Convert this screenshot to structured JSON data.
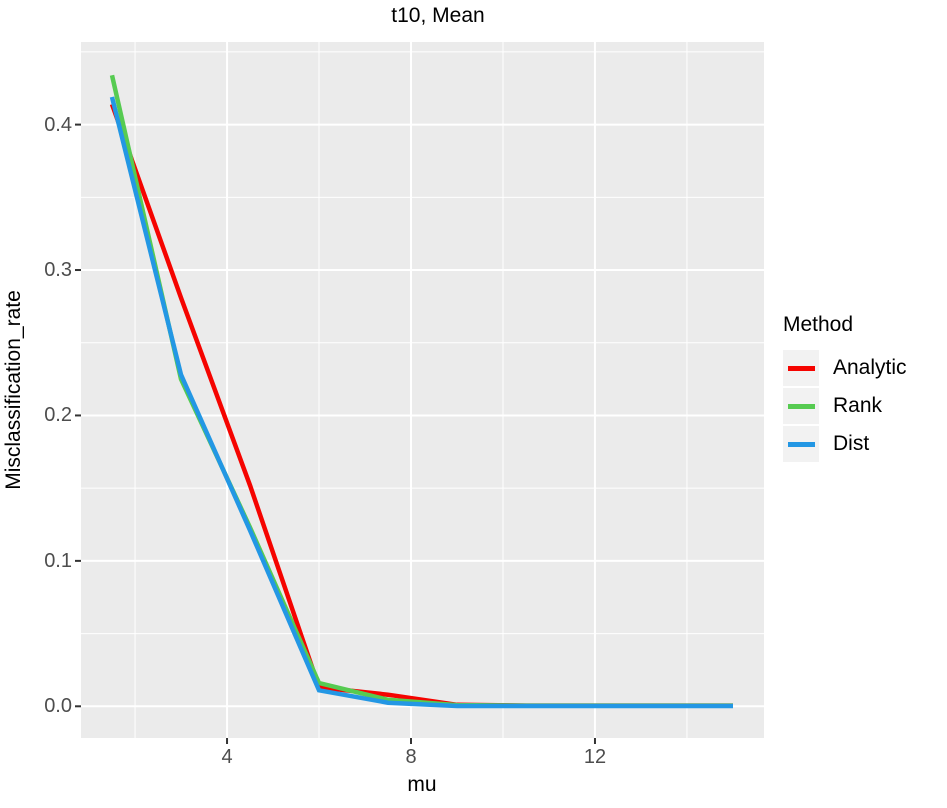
{
  "title": "t10, Mean",
  "colors": {
    "panel_bg": "#EBEBEB",
    "grid": "#FFFFFF",
    "tick_text": "#4D4D4D",
    "tick_mark": "#333333",
    "text": "#000000",
    "legend_key_bg": "#F2F2F2"
  },
  "axes": {
    "x": {
      "label": "mu",
      "major_ticks": [
        {
          "label": "4",
          "value": 4
        },
        {
          "label": "8",
          "value": 8
        },
        {
          "label": "12",
          "value": 12
        }
      ],
      "minor_ticks": [
        2,
        6,
        10,
        14
      ]
    },
    "y": {
      "label": "Misclassification_rate",
      "major_ticks": [
        {
          "label": "0.0",
          "value": 0.0
        },
        {
          "label": "0.1",
          "value": 0.1
        },
        {
          "label": "0.2",
          "value": 0.2
        },
        {
          "label": "0.3",
          "value": 0.3
        },
        {
          "label": "0.4",
          "value": 0.4
        }
      ],
      "minor_ticks": [
        0.05,
        0.15,
        0.25,
        0.35,
        0.45
      ]
    }
  },
  "legend": {
    "title": "Method",
    "items": [
      {
        "label": "Analytic",
        "color": "#F50400"
      },
      {
        "label": "Rank",
        "color": "#56CB51"
      },
      {
        "label": "Dist",
        "color": "#2397E4"
      }
    ]
  },
  "chart_data": {
    "type": "line",
    "title": "t10, Mean",
    "xlabel": "mu",
    "ylabel": "Misclassification_rate",
    "x": [
      1.5,
      3,
      4.5,
      6,
      7.5,
      9,
      10.5,
      12,
      13.5,
      15
    ],
    "series": [
      {
        "name": "Analytic",
        "color": "#F50400",
        "values": [
          0.414,
          0.281,
          0.152,
          0.013,
          0.008,
          0.001,
          0.0005,
          0.0005,
          0.0005,
          0.0005
        ]
      },
      {
        "name": "Rank",
        "color": "#56CB51",
        "values": [
          0.434,
          0.225,
          0.123,
          0.016,
          0.0045,
          0.0008,
          0.0005,
          0.0005,
          0.0005,
          0.0005
        ]
      },
      {
        "name": "Dist",
        "color": "#2397E4",
        "values": [
          0.419,
          0.228,
          0.121,
          0.011,
          0.0025,
          0.0002,
          0.0002,
          0.0002,
          0.0002,
          0.0002
        ]
      }
    ],
    "xlim": [
      0.825,
      15.675
    ],
    "ylim": [
      -0.0218,
      0.4568
    ],
    "x_major_gridlines": [
      4,
      8,
      12
    ],
    "x_minor_gridlines": [
      2,
      6,
      10,
      14
    ],
    "y_major_gridlines": [
      0.0,
      0.1,
      0.2,
      0.3,
      0.4
    ],
    "y_minor_gridlines": [
      0.05,
      0.15,
      0.25,
      0.35,
      0.45
    ],
    "grid": true,
    "legend_position": "right",
    "legend_title": "Method"
  }
}
